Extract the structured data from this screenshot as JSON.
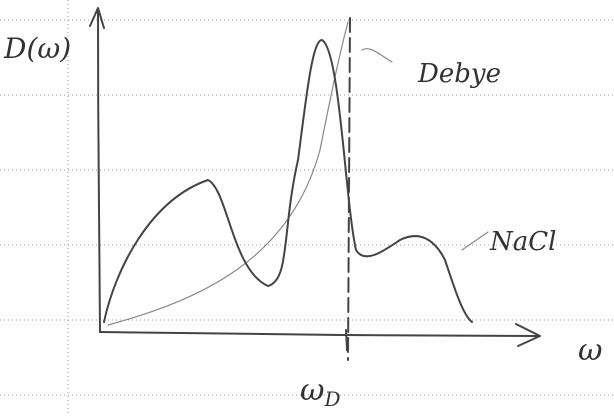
{
  "labels": {
    "y_axis": "D(ω)",
    "x_axis": "ω",
    "cutoff": "ω",
    "cutoff_sub": "D",
    "debye": "Debye",
    "nacl": "NaCl"
  }
}
